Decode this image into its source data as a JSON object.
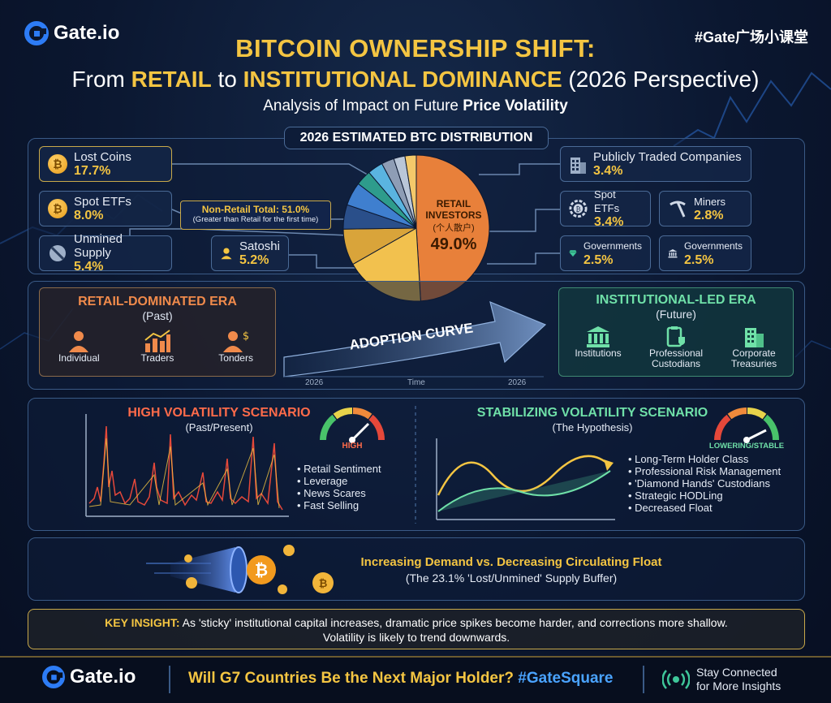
{
  "brand": {
    "logo_text": "Gate.io",
    "hashtag": "#Gate广场小课堂"
  },
  "header": {
    "title_line1": "BITCOIN OWNERSHIP SHIFT:",
    "title_line2_pre": "From ",
    "title_line2_retail": "RETAIL",
    "title_line2_mid": " to ",
    "title_line2_inst": "INSTITUTIONAL DOMINANCE",
    "title_line2_post": " (2026 Perspective)",
    "subtitle_pre": "Analysis of Impact on Future ",
    "subtitle_bold": "Price Volatility"
  },
  "distribution": {
    "section_title": "2026 ESTIMATED BTC DISTRIBUTION",
    "left_items": [
      {
        "label": "Lost Coins",
        "value": "17.7%",
        "icon": "bitcoin-coin-icon"
      },
      {
        "label": "Spot ETFs",
        "value": "8.0%",
        "icon": "bitcoin-coin-icon"
      },
      {
        "label": "Unmined Supply",
        "value": "5.4%",
        "icon": "prohibited-icon"
      },
      {
        "label": "Satoshi",
        "value": "5.2%",
        "icon": "person-icon"
      }
    ],
    "non_retail_total": "Non-Retail Total: 51.0%",
    "non_retail_note": "(Greater than Retail for the first time)",
    "retail_label_line1": "RETAIL",
    "retail_label_line2": "INVESTORS",
    "retail_label_cn": "(个人散户)",
    "retail_value": "49.0%",
    "right_items": [
      {
        "label": "Publicly Traded Companies",
        "value": "3.4%",
        "icon": "building-icon"
      },
      {
        "label": "Spot ETFs",
        "value": "3.4%",
        "icon": "gear-coin-icon"
      },
      {
        "label": "Miners",
        "value": "2.8%",
        "icon": "pickaxe-icon"
      },
      {
        "label": "Governments",
        "value": "2.5%",
        "icon": "diamond-icon"
      },
      {
        "label": "Governments",
        "value": "2.5%",
        "icon": "government-building-icon"
      }
    ]
  },
  "chart_data": {
    "type": "pie",
    "labels": [
      "Retail Investors",
      "Lost Coins",
      "Spot ETFs",
      "Unmined Supply",
      "Satoshi",
      "Publicly Traded Companies",
      "Spot ETFs",
      "Miners",
      "Governments",
      "Governments"
    ],
    "values": [
      49.0,
      17.7,
      8.0,
      5.4,
      5.2,
      3.4,
      3.4,
      2.8,
      2.5,
      2.5
    ],
    "colors": [
      "#e8803a",
      "#f2c14e",
      "#d9a43a",
      "#2a4f8a",
      "#3f7fcf",
      "#2e9c8c",
      "#5ab4e0",
      "#8e9db5",
      "#b9c6d8",
      "#f4c96a"
    ]
  },
  "eras": {
    "retail_title": "RETAIL-DOMINATED ERA",
    "retail_sub": "(Past)",
    "retail_icons": [
      {
        "label": "Individual",
        "icon": "person-icon"
      },
      {
        "label": "Traders",
        "icon": "bar-chart-icon"
      },
      {
        "label": "Tonders",
        "icon": "person-dollar-icon"
      }
    ],
    "curve_label": "ADOPTION CURVE",
    "axis_left": "2026",
    "axis_mid": "Time",
    "axis_right": "2026",
    "inst_title": "INSTITUTIONAL-LED ERA",
    "inst_sub": "(Future)",
    "inst_icons": [
      {
        "label": "Institutions",
        "icon": "bank-icon"
      },
      {
        "label": "Professional Custodians",
        "icon": "clipboard-shield-icon"
      },
      {
        "label": "Corporate Treasuries",
        "icon": "office-building-icon"
      }
    ]
  },
  "high_vol": {
    "title": "HIGH VOLATILITY SCENARIO",
    "sub": "(Past/Present)",
    "gauge_label": "HIGH",
    "bullets": [
      "Retail Sentiment",
      "Leverage",
      "News Scares",
      "Fast Selling"
    ]
  },
  "stable_vol": {
    "title": "STABILIZING VOLATILITY SCENARIO",
    "sub": "(The Hypothesis)",
    "gauge_label": "LOWERING/STABLE",
    "bullets": [
      "Long-Term Holder Class",
      "Professional Risk Management",
      "'Diamond Hands' Custodians",
      "Strategic HODLing",
      "Decreased Float"
    ]
  },
  "demand": {
    "title": "Increasing Demand vs. Decreasing Circulating Float",
    "sub": "(The 23.1% 'Lost/Unmined' Supply Buffer)"
  },
  "insight": {
    "label": "KEY INSIGHT:",
    "line1": " As 'sticky' institutional capital increases, dramatic price spikes become harder, and corrections more shallow.",
    "line2": "Volatility is likely to trend downwards."
  },
  "footer": {
    "logo_text": "Gate.io",
    "question": "Will G7 Countries Be the Next Major Holder?",
    "hashtag": "#GateSquare",
    "cta_line1": "Stay Connected",
    "cta_line2": "for More Insights"
  },
  "colors": {
    "gold": "#f4c542",
    "retail_era": "#f08a4b",
    "inst_era": "#6fe0a8",
    "high_vol": "#ff6b4a",
    "stable_vol": "#6fe0a8"
  }
}
